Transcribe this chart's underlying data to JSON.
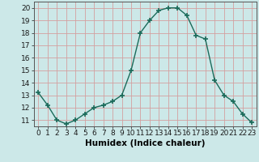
{
  "x": [
    0,
    1,
    2,
    3,
    4,
    5,
    6,
    7,
    8,
    9,
    10,
    11,
    12,
    13,
    14,
    15,
    16,
    17,
    18,
    19,
    20,
    21,
    22,
    23
  ],
  "y": [
    13.2,
    12.2,
    11.0,
    10.7,
    11.0,
    11.5,
    12.0,
    12.2,
    12.5,
    13.0,
    15.0,
    18.0,
    19.0,
    19.8,
    20.0,
    20.0,
    19.4,
    17.8,
    17.5,
    14.2,
    13.0,
    12.5,
    11.5,
    10.8
  ],
  "line_color": "#1a6b5a",
  "marker": "+",
  "marker_size": 4,
  "bg_color": "#cce8e8",
  "grid_color": "#d4a0a0",
  "xlabel": "Humidex (Indice chaleur)",
  "ylim": [
    10.5,
    20.5
  ],
  "xlim": [
    -0.5,
    23.5
  ],
  "yticks": [
    11,
    12,
    13,
    14,
    15,
    16,
    17,
    18,
    19,
    20
  ],
  "xticks": [
    0,
    1,
    2,
    3,
    4,
    5,
    6,
    7,
    8,
    9,
    10,
    11,
    12,
    13,
    14,
    15,
    16,
    17,
    18,
    19,
    20,
    21,
    22,
    23
  ],
  "tick_fontsize": 6.5,
  "xlabel_fontsize": 7.5
}
